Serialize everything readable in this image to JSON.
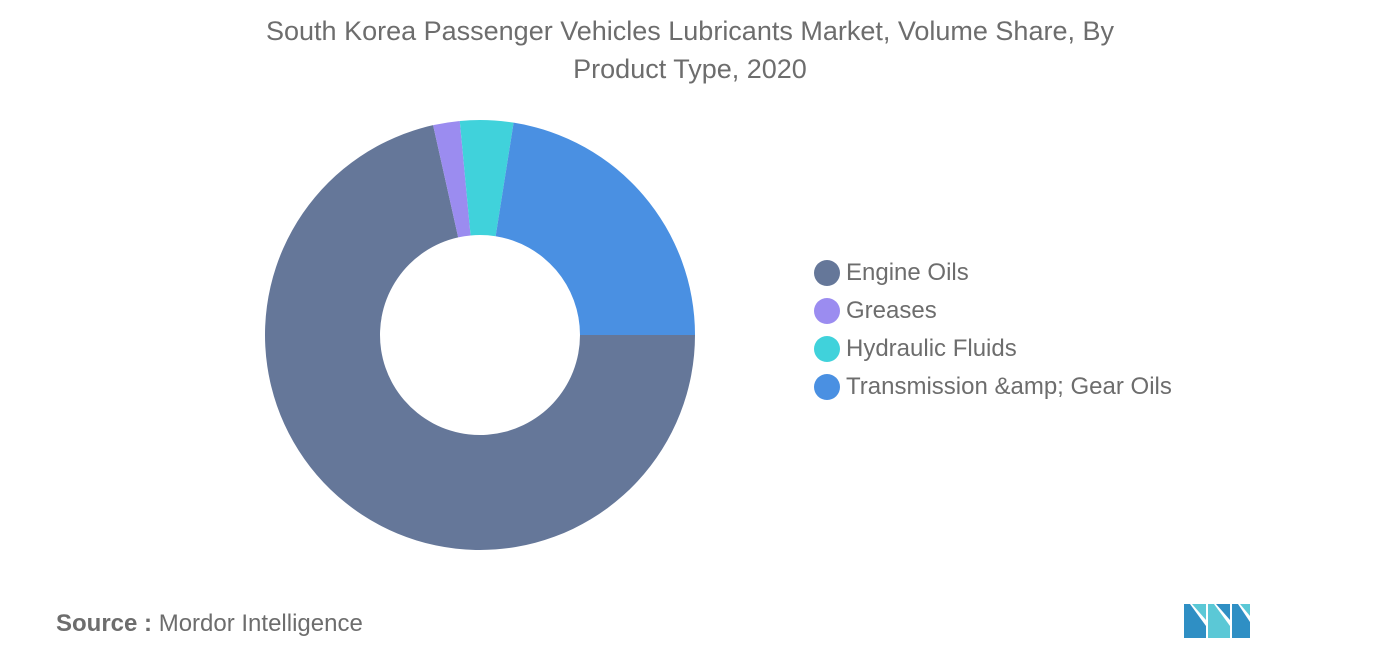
{
  "title": {
    "line1": "South Korea Passenger Vehicles Lubricants Market, Volume Share, By",
    "line2": "Product Type, 2020"
  },
  "chart_data": {
    "type": "pie",
    "donut": true,
    "title": "South Korea Passenger Vehicles Lubricants Market, Volume Share, By Product Type, 2020",
    "categories": [
      "Engine Oils",
      "Greases",
      "Hydraulic Fluids",
      "Transmission &amp; Gear Oils"
    ],
    "values": [
      71.5,
      2.0,
      4.0,
      22.5
    ],
    "colors": [
      "#657799",
      "#9b8cf0",
      "#40d2db",
      "#4a90e2"
    ],
    "legend_position": "right"
  },
  "legend": {
    "items": [
      {
        "label": "Engine Oils",
        "color": "#657799"
      },
      {
        "label": "Greases",
        "color": "#9b8cf0"
      },
      {
        "label": "Hydraulic Fluids",
        "color": "#40d2db"
      },
      {
        "label": "Transmission &amp; Gear Oils",
        "color": "#4a90e2"
      }
    ]
  },
  "source": {
    "label": "Source :",
    "value": "Mordor Intelligence"
  },
  "logo": {
    "icon": "mordor-intelligence-logo-icon",
    "colors": [
      "#2f8fc4",
      "#5bc8d6"
    ]
  }
}
